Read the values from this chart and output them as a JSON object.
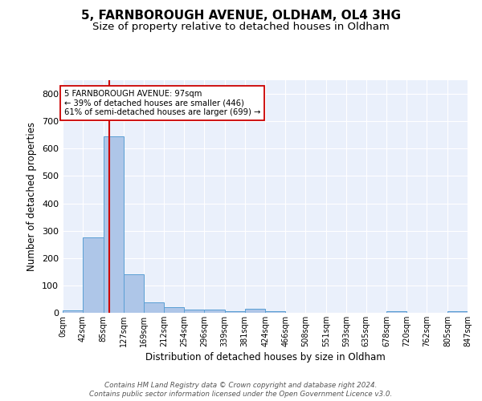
{
  "title1": "5, FARNBOROUGH AVENUE, OLDHAM, OL4 3HG",
  "title2": "Size of property relative to detached houses in Oldham",
  "xlabel": "Distribution of detached houses by size in Oldham",
  "ylabel": "Number of detached properties",
  "bar_edges": [
    0,
    42,
    85,
    127,
    169,
    212,
    254,
    296,
    339,
    381,
    424,
    466,
    508,
    551,
    593,
    635,
    678,
    720,
    762,
    805,
    847
  ],
  "bar_values": [
    8,
    275,
    645,
    140,
    37,
    20,
    13,
    11,
    6,
    15,
    6,
    0,
    0,
    0,
    0,
    0,
    7,
    0,
    0,
    5
  ],
  "bar_color": "#AEC6E8",
  "bar_edge_color": "#5A9FD4",
  "property_value": 97,
  "red_line_color": "#CC0000",
  "annotation_line1": "5 FARNBOROUGH AVENUE: 97sqm",
  "annotation_line2": "← 39% of detached houses are smaller (446)",
  "annotation_line3": "61% of semi-detached houses are larger (699) →",
  "annotation_box_color": "#FFFFFF",
  "annotation_box_edge": "#CC0000",
  "ylim": [
    0,
    850
  ],
  "yticks": [
    0,
    100,
    200,
    300,
    400,
    500,
    600,
    700,
    800
  ],
  "footer1": "Contains HM Land Registry data © Crown copyright and database right 2024.",
  "footer2": "Contains public sector information licensed under the Open Government Licence v3.0.",
  "bg_color": "#EAF0FB",
  "grid_color": "#FFFFFF",
  "title1_fontsize": 11,
  "title2_fontsize": 9.5
}
